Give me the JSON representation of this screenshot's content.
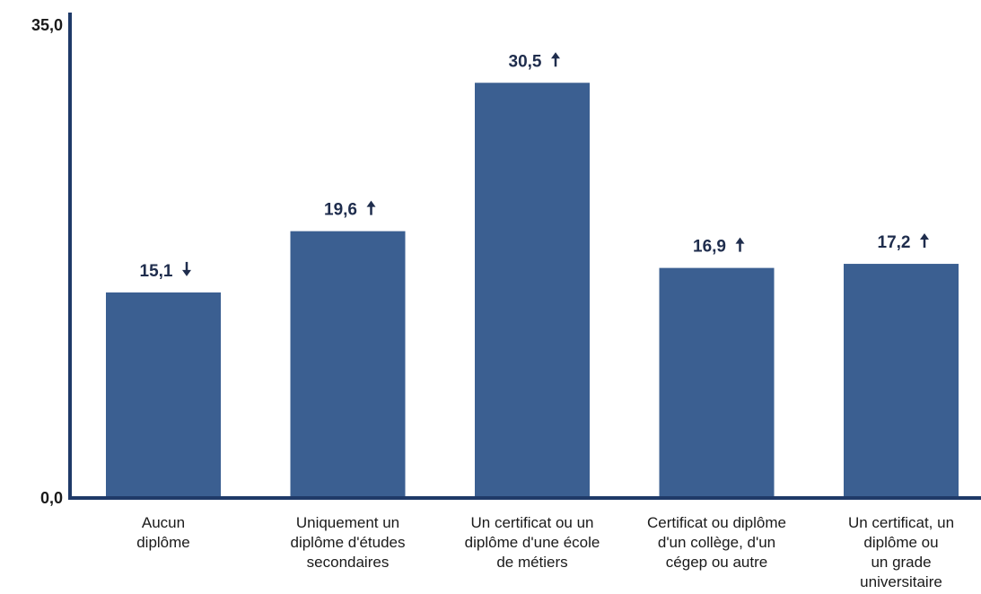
{
  "chart_data": {
    "type": "bar",
    "categories": [
      [
        "Aucun",
        "diplôme"
      ],
      [
        "Uniquement un",
        "diplôme d'études",
        "secondaires"
      ],
      [
        "Un certificat ou un",
        "diplôme d'une école",
        "de métiers"
      ],
      [
        "Certificat ou diplôme",
        "d'un collège, d'un",
        "cégep ou autre"
      ],
      [
        "Un certificat, un",
        "diplôme ou",
        "un grade",
        "universitaire"
      ]
    ],
    "values": [
      15.1,
      19.6,
      30.5,
      16.9,
      17.2
    ],
    "value_labels": [
      "15,1",
      "19,6",
      "30,5",
      "16,9",
      "17,2"
    ],
    "trend": [
      "down",
      "up",
      "up",
      "up",
      "up"
    ],
    "ylim": [
      0,
      35
    ],
    "y_tick_labels": [
      "0,0",
      "35,0"
    ],
    "title": "",
    "xlabel": "",
    "ylabel": "",
    "grid": false,
    "bar_color": "#3b5f91",
    "axis_color": "#1f3a68"
  }
}
